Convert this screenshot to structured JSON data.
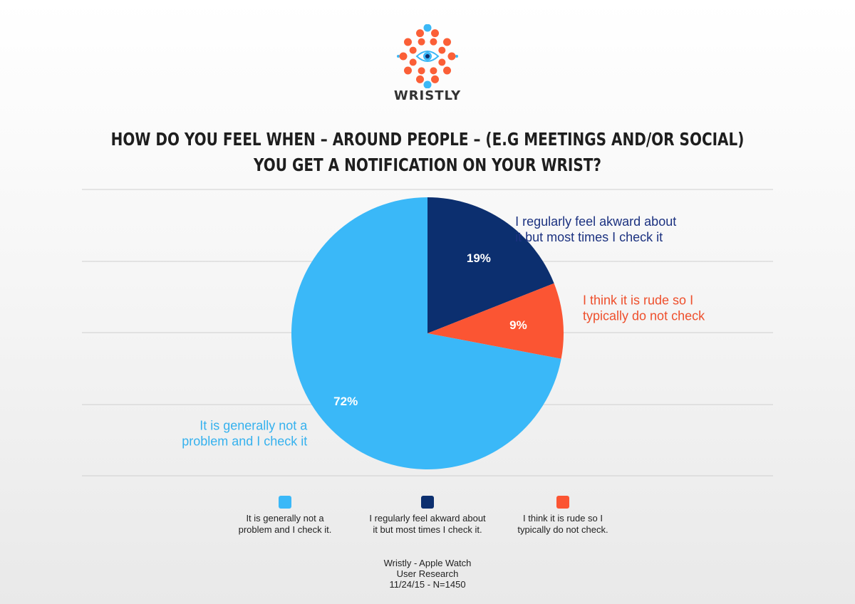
{
  "brand": {
    "name": "WRISTLY",
    "logo_icon": "eye-dots-logo",
    "colors": {
      "dots_orange": "#fb5f37",
      "dots_blue": "#3bb8f6",
      "eye_navy": "#0f2f6b"
    }
  },
  "chart_data": {
    "type": "pie",
    "title_lines": [
      "HOW DO YOU FEEL WHEN – AROUND PEOPLE – (E.G MEETINGS AND/OR SOCIAL)",
      "YOU GET A NOTIFICATION ON YOUR WRIST?"
    ],
    "slices": [
      {
        "label_lines": [
          "I regularly feel akward about",
          "it but most times I check it"
        ],
        "legend_lines": [
          "I regularly feel akward about",
          "it but most times I check it."
        ],
        "value": 19,
        "value_label": "19%",
        "color": "#0c2f6f",
        "label_color": "#1c3280",
        "value_text_color": "#ffffff"
      },
      {
        "label_lines": [
          "I think it is rude so I",
          "typically do not check"
        ],
        "legend_lines": [
          "I think it is rude so I",
          "typically do not check."
        ],
        "value": 9,
        "value_label": "9%",
        "color": "#fb5533",
        "label_color": "#ee4f2c",
        "value_text_color": "#ffffff"
      },
      {
        "label_lines": [
          "It is generally not a",
          "problem and I check it"
        ],
        "legend_lines": [
          "It is generally not a",
          "problem and I check it."
        ],
        "value": 72,
        "value_label": "72%",
        "color": "#3ab8f8",
        "label_color": "#35b1ee",
        "value_text_color": "#ffffff"
      }
    ],
    "start": "12 o'clock",
    "direction": "clockwise",
    "grid": true,
    "legend_position": "bottom",
    "legend_order": [
      2,
      0,
      1
    ]
  },
  "footer": {
    "lines": [
      "Wristly - Apple Watch",
      "User Research",
      "11/24/15 - N=1450"
    ]
  }
}
